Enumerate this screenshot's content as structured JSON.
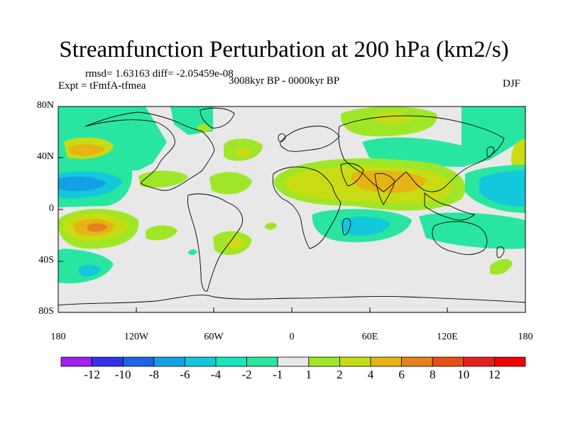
{
  "title": "Streamfunction Perturbation at 200 hPa (km2/s)",
  "stats": "rmsd= 1.63163 diff= -2.05459e-08",
  "experiment": "Expt = tFmfA-tfmea",
  "period": "3008kyr BP - 0000kyr BP",
  "season": "DJF",
  "lat_labels": [
    "80N",
    "40N",
    "0",
    "40S",
    "80S"
  ],
  "lon_labels": [
    "180",
    "120W",
    "60W",
    "0",
    "60E",
    "120E",
    "180"
  ],
  "colorbar": {
    "labels": [
      "-12",
      "-10",
      "-8",
      "-6",
      "-4",
      "-2",
      "-1",
      "1",
      "2",
      "4",
      "6",
      "8",
      "10",
      "12"
    ],
    "colors": [
      "#a020f0",
      "#3232e6",
      "#1e64e6",
      "#14a0e6",
      "#14c8dc",
      "#14e6be",
      "#28e6a0",
      "#e8e8e8",
      "#a0e628",
      "#c8dc14",
      "#e6b414",
      "#e6821e",
      "#e65014",
      "#e61e1e",
      "#f00000"
    ]
  },
  "colors": {
    "land_line": "#000000",
    "neutral": "#e8e8e8",
    "neg1": "#28e6a0",
    "neg2": "#14c8dc",
    "neg3": "#14a0e6",
    "pos1": "#a0e628",
    "pos2": "#c8dc14",
    "pos3": "#e6b414",
    "pos4": "#e6821e"
  }
}
